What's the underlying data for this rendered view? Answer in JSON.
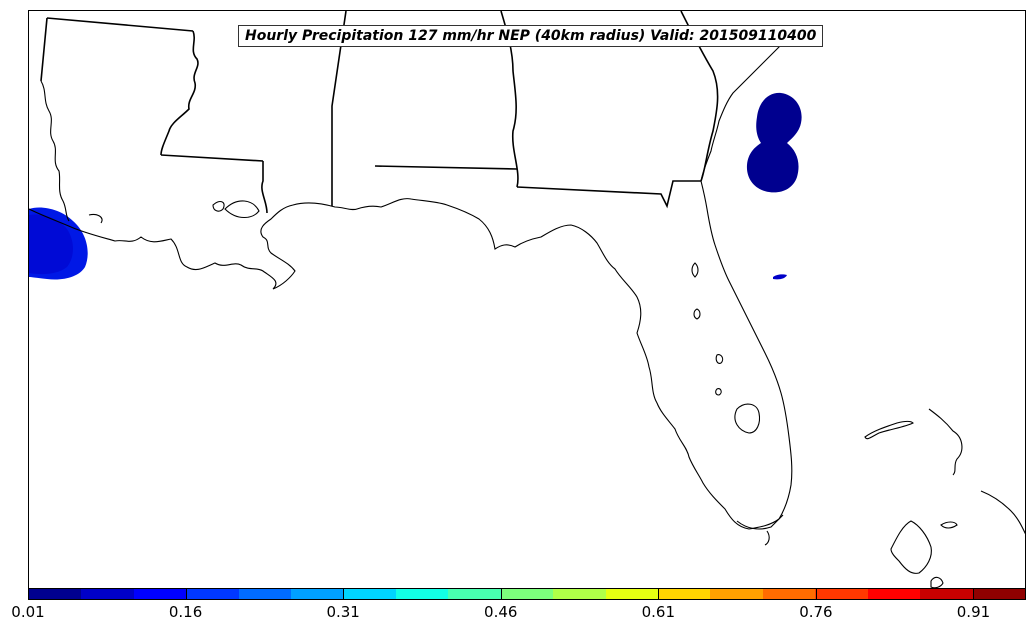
{
  "map": {
    "title": "Hourly Precipitation 127 mm/hr NEP (40km radius) Valid: 201509110400",
    "colorbar": {
      "tick_labels": [
        "0.01",
        "0.16",
        "0.31",
        "0.46",
        "0.61",
        "0.76",
        "0.91"
      ],
      "colors": [
        "#00008f",
        "#0000c8",
        "#0000ff",
        "#0038ff",
        "#006cff",
        "#00a0ff",
        "#00d4ff",
        "#12ffe6",
        "#48ffb0",
        "#7cff7c",
        "#b0ff48",
        "#e6ff12",
        "#ffd400",
        "#ffa000",
        "#ff6c00",
        "#ff3800",
        "#ff0000",
        "#c80000",
        "#8f0000"
      ]
    },
    "precip_areas": [
      {
        "name": "gulf-west-blob",
        "color": "#0018e6"
      },
      {
        "name": "atlantic-blob",
        "color": "#00008f"
      }
    ]
  }
}
